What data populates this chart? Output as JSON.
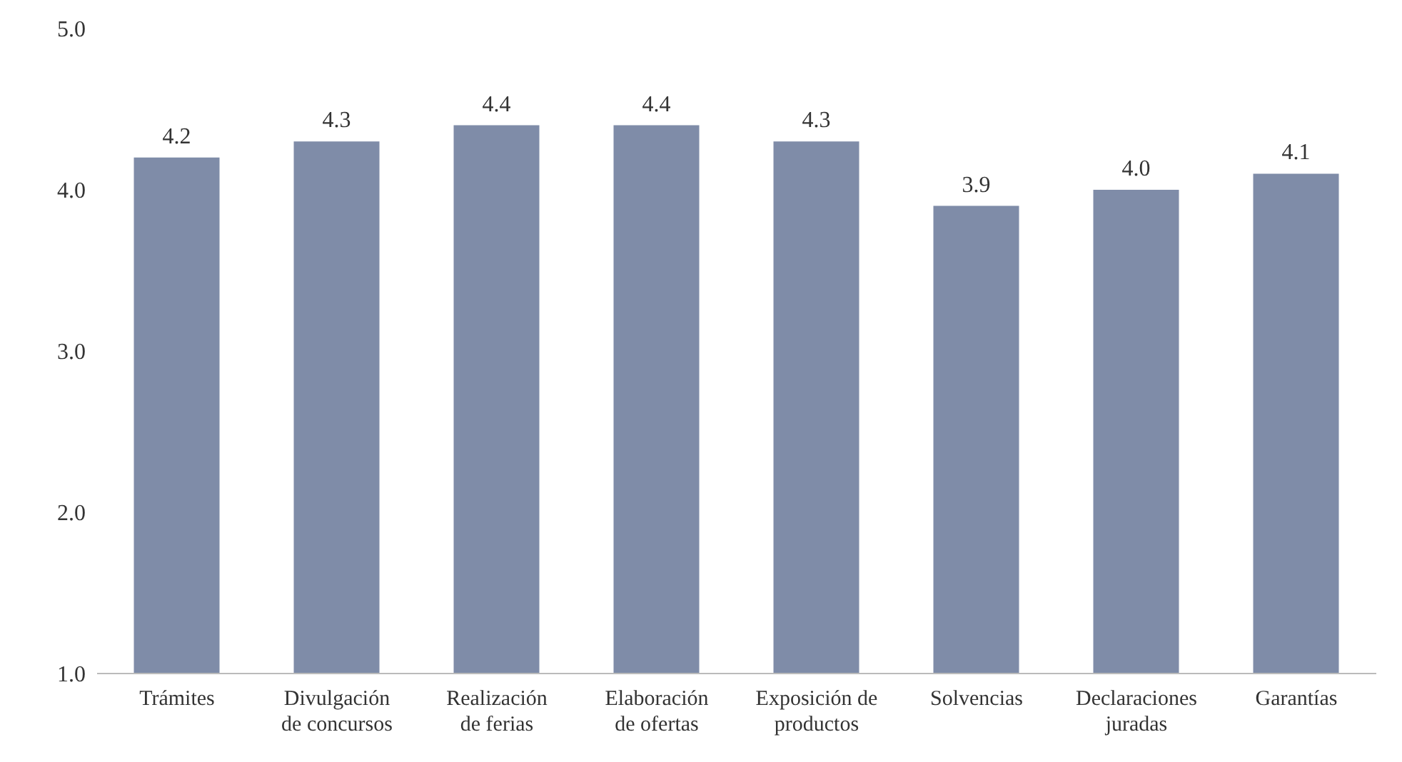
{
  "chart_data": {
    "type": "bar",
    "categories": [
      "Trámites",
      "Divulgación de concursos",
      "Realización de ferias",
      "Elaboración de ofertas",
      "Exposición de productos",
      "Solvencias",
      "Declaraciones juradas",
      "Garantías"
    ],
    "values": [
      4.2,
      4.3,
      4.4,
      4.4,
      4.3,
      3.9,
      4.0,
      4.1
    ],
    "color": "#7f8ca8",
    "value_labels": [
      "4.2",
      "4.3",
      "4.4",
      "4.4",
      "4.3",
      "3.9",
      "4.0",
      "4.1"
    ],
    "ylim": [
      1,
      5
    ],
    "yticks": [
      {
        "value": 1,
        "label": "1.0"
      },
      {
        "value": 2,
        "label": "2.0"
      },
      {
        "value": 3,
        "label": "3.0"
      },
      {
        "value": 4,
        "label": "4.0"
      },
      {
        "value": 5,
        "label": "5.0"
      }
    ],
    "grid": false,
    "legend": false
  }
}
